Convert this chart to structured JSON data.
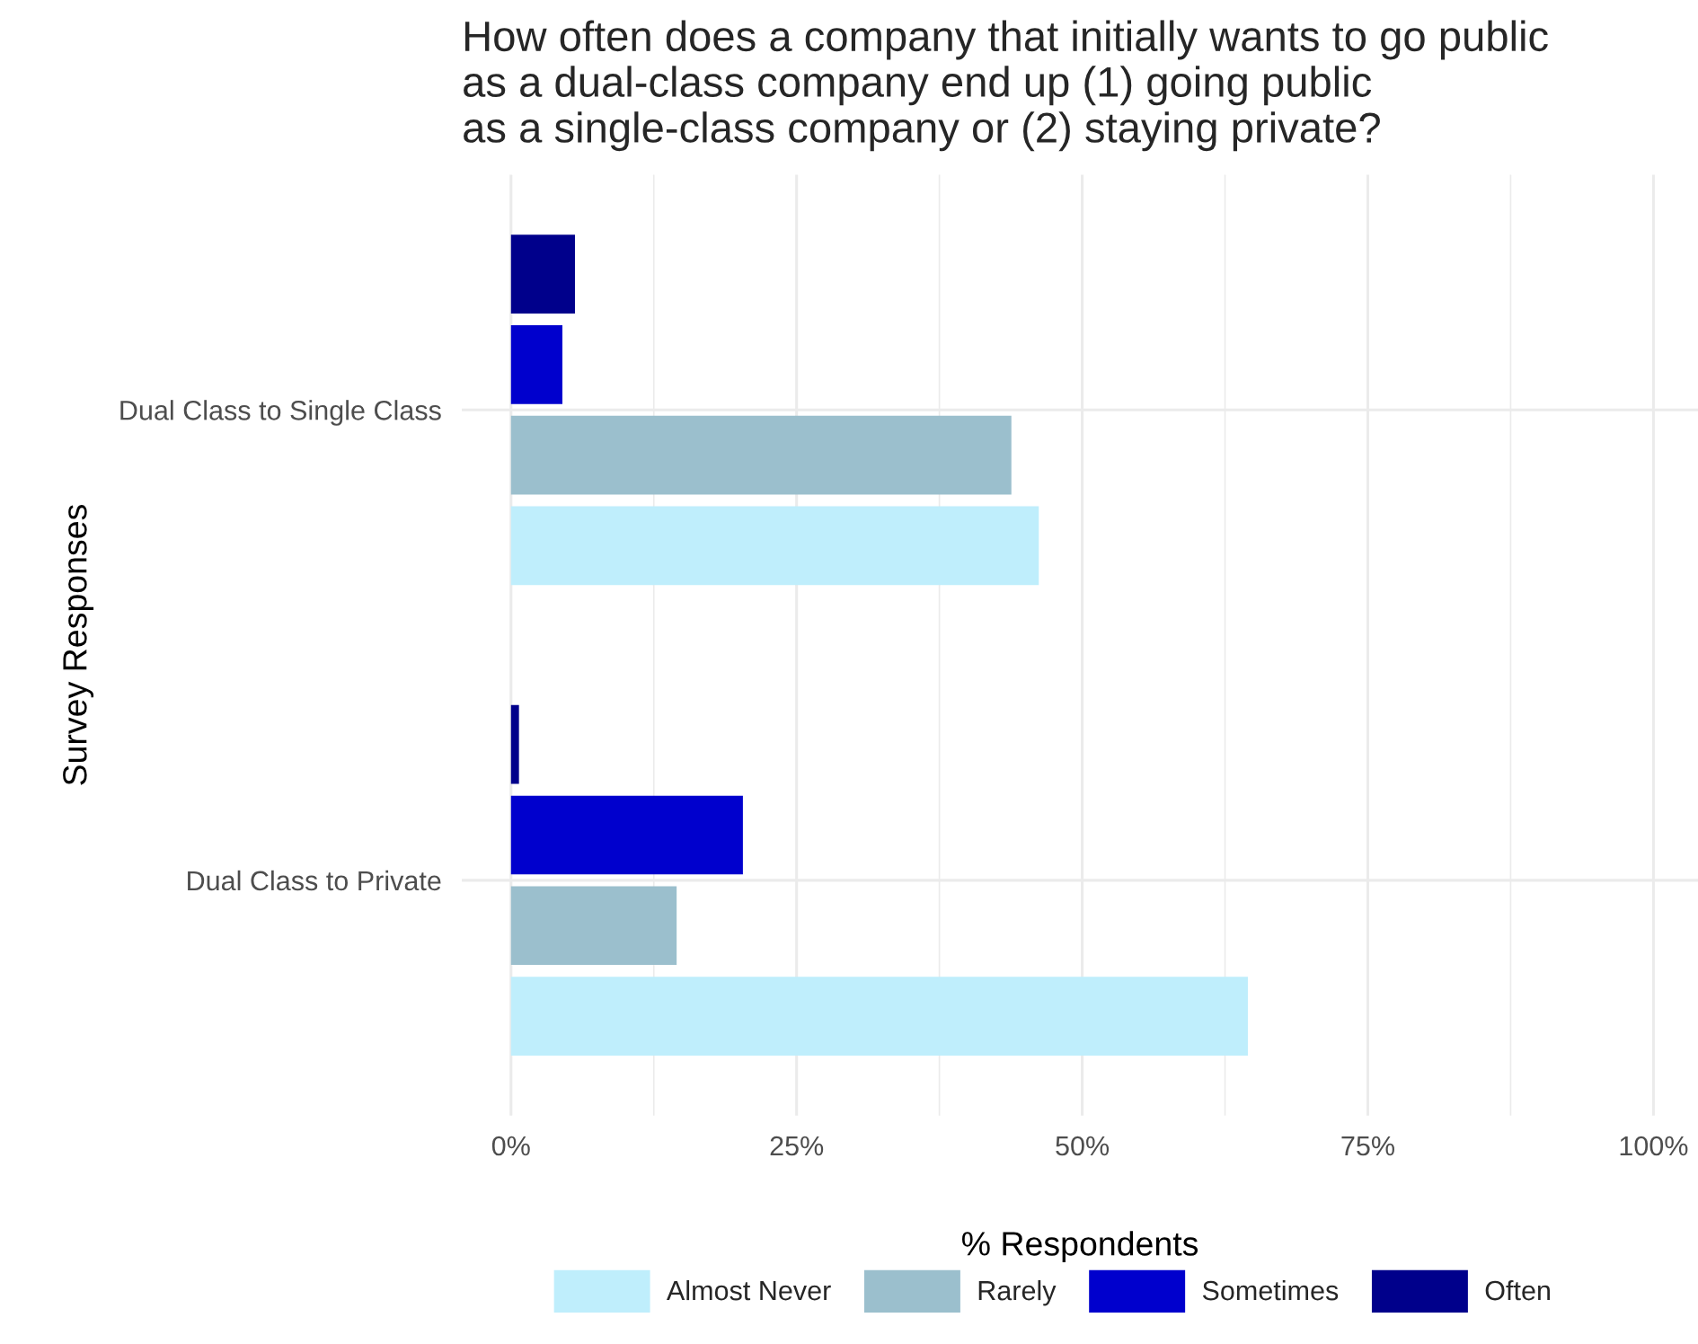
{
  "chart_data": {
    "type": "bar",
    "orientation": "horizontal",
    "title": "How often does a company that initially wants to go public\nas a dual-class company end up (1) going public\nas a single-class company or (2) staying private?",
    "xlabel": "% Respondents",
    "ylabel": "Survey Responses",
    "categories": [
      "Dual Class to Single Class",
      "Dual Class to Private"
    ],
    "series": [
      {
        "name": "Almost Never",
        "color": "#bfeefc",
        "values": [
          46.2,
          64.5
        ]
      },
      {
        "name": "Rarely",
        "color": "#9bbfcd",
        "values": [
          43.8,
          14.5
        ]
      },
      {
        "name": "Sometimes",
        "color": "#0000cd",
        "values": [
          4.5,
          20.3
        ]
      },
      {
        "name": "Often",
        "color": "#00008b",
        "values": [
          5.6,
          0.7
        ]
      }
    ],
    "xlim": [
      -4.3,
      103.9
    ],
    "xticks": [
      {
        "value": 0,
        "label": "0%"
      },
      {
        "value": 25,
        "label": "25%"
      },
      {
        "value": 50,
        "label": "50%"
      },
      {
        "value": 75,
        "label": "75%"
      },
      {
        "value": 100,
        "label": "100%"
      }
    ],
    "grid": true,
    "legend": "bottom"
  }
}
